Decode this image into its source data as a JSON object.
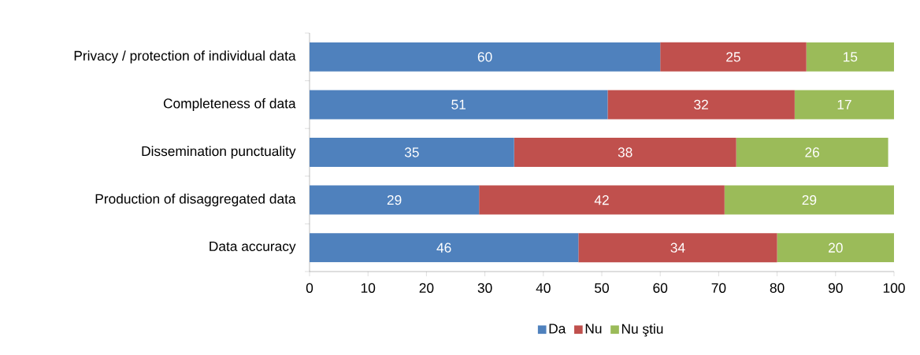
{
  "chart_data": {
    "type": "bar",
    "orientation": "horizontal",
    "stacked": true,
    "data_labels": true,
    "legend": "bottom",
    "grid": false,
    "categories": [
      "Privacy / protection of individual data",
      "Completeness of data",
      "Dissemination punctuality",
      "Production of disaggregated data",
      "Data accuracy"
    ],
    "series": [
      {
        "name": "Da",
        "color": "#4f81bd",
        "values": [
          60,
          51,
          35,
          29,
          46
        ]
      },
      {
        "name": "Nu",
        "color": "#c0504d",
        "values": [
          25,
          32,
          38,
          42,
          34
        ]
      },
      {
        "name": "Nu ştiu",
        "color": "#9bbb59",
        "values": [
          15,
          17,
          26,
          29,
          20
        ]
      }
    ],
    "xlim": [
      0,
      100
    ],
    "xticks": [
      0,
      10,
      20,
      30,
      40,
      50,
      60,
      70,
      80,
      90,
      100
    ]
  }
}
